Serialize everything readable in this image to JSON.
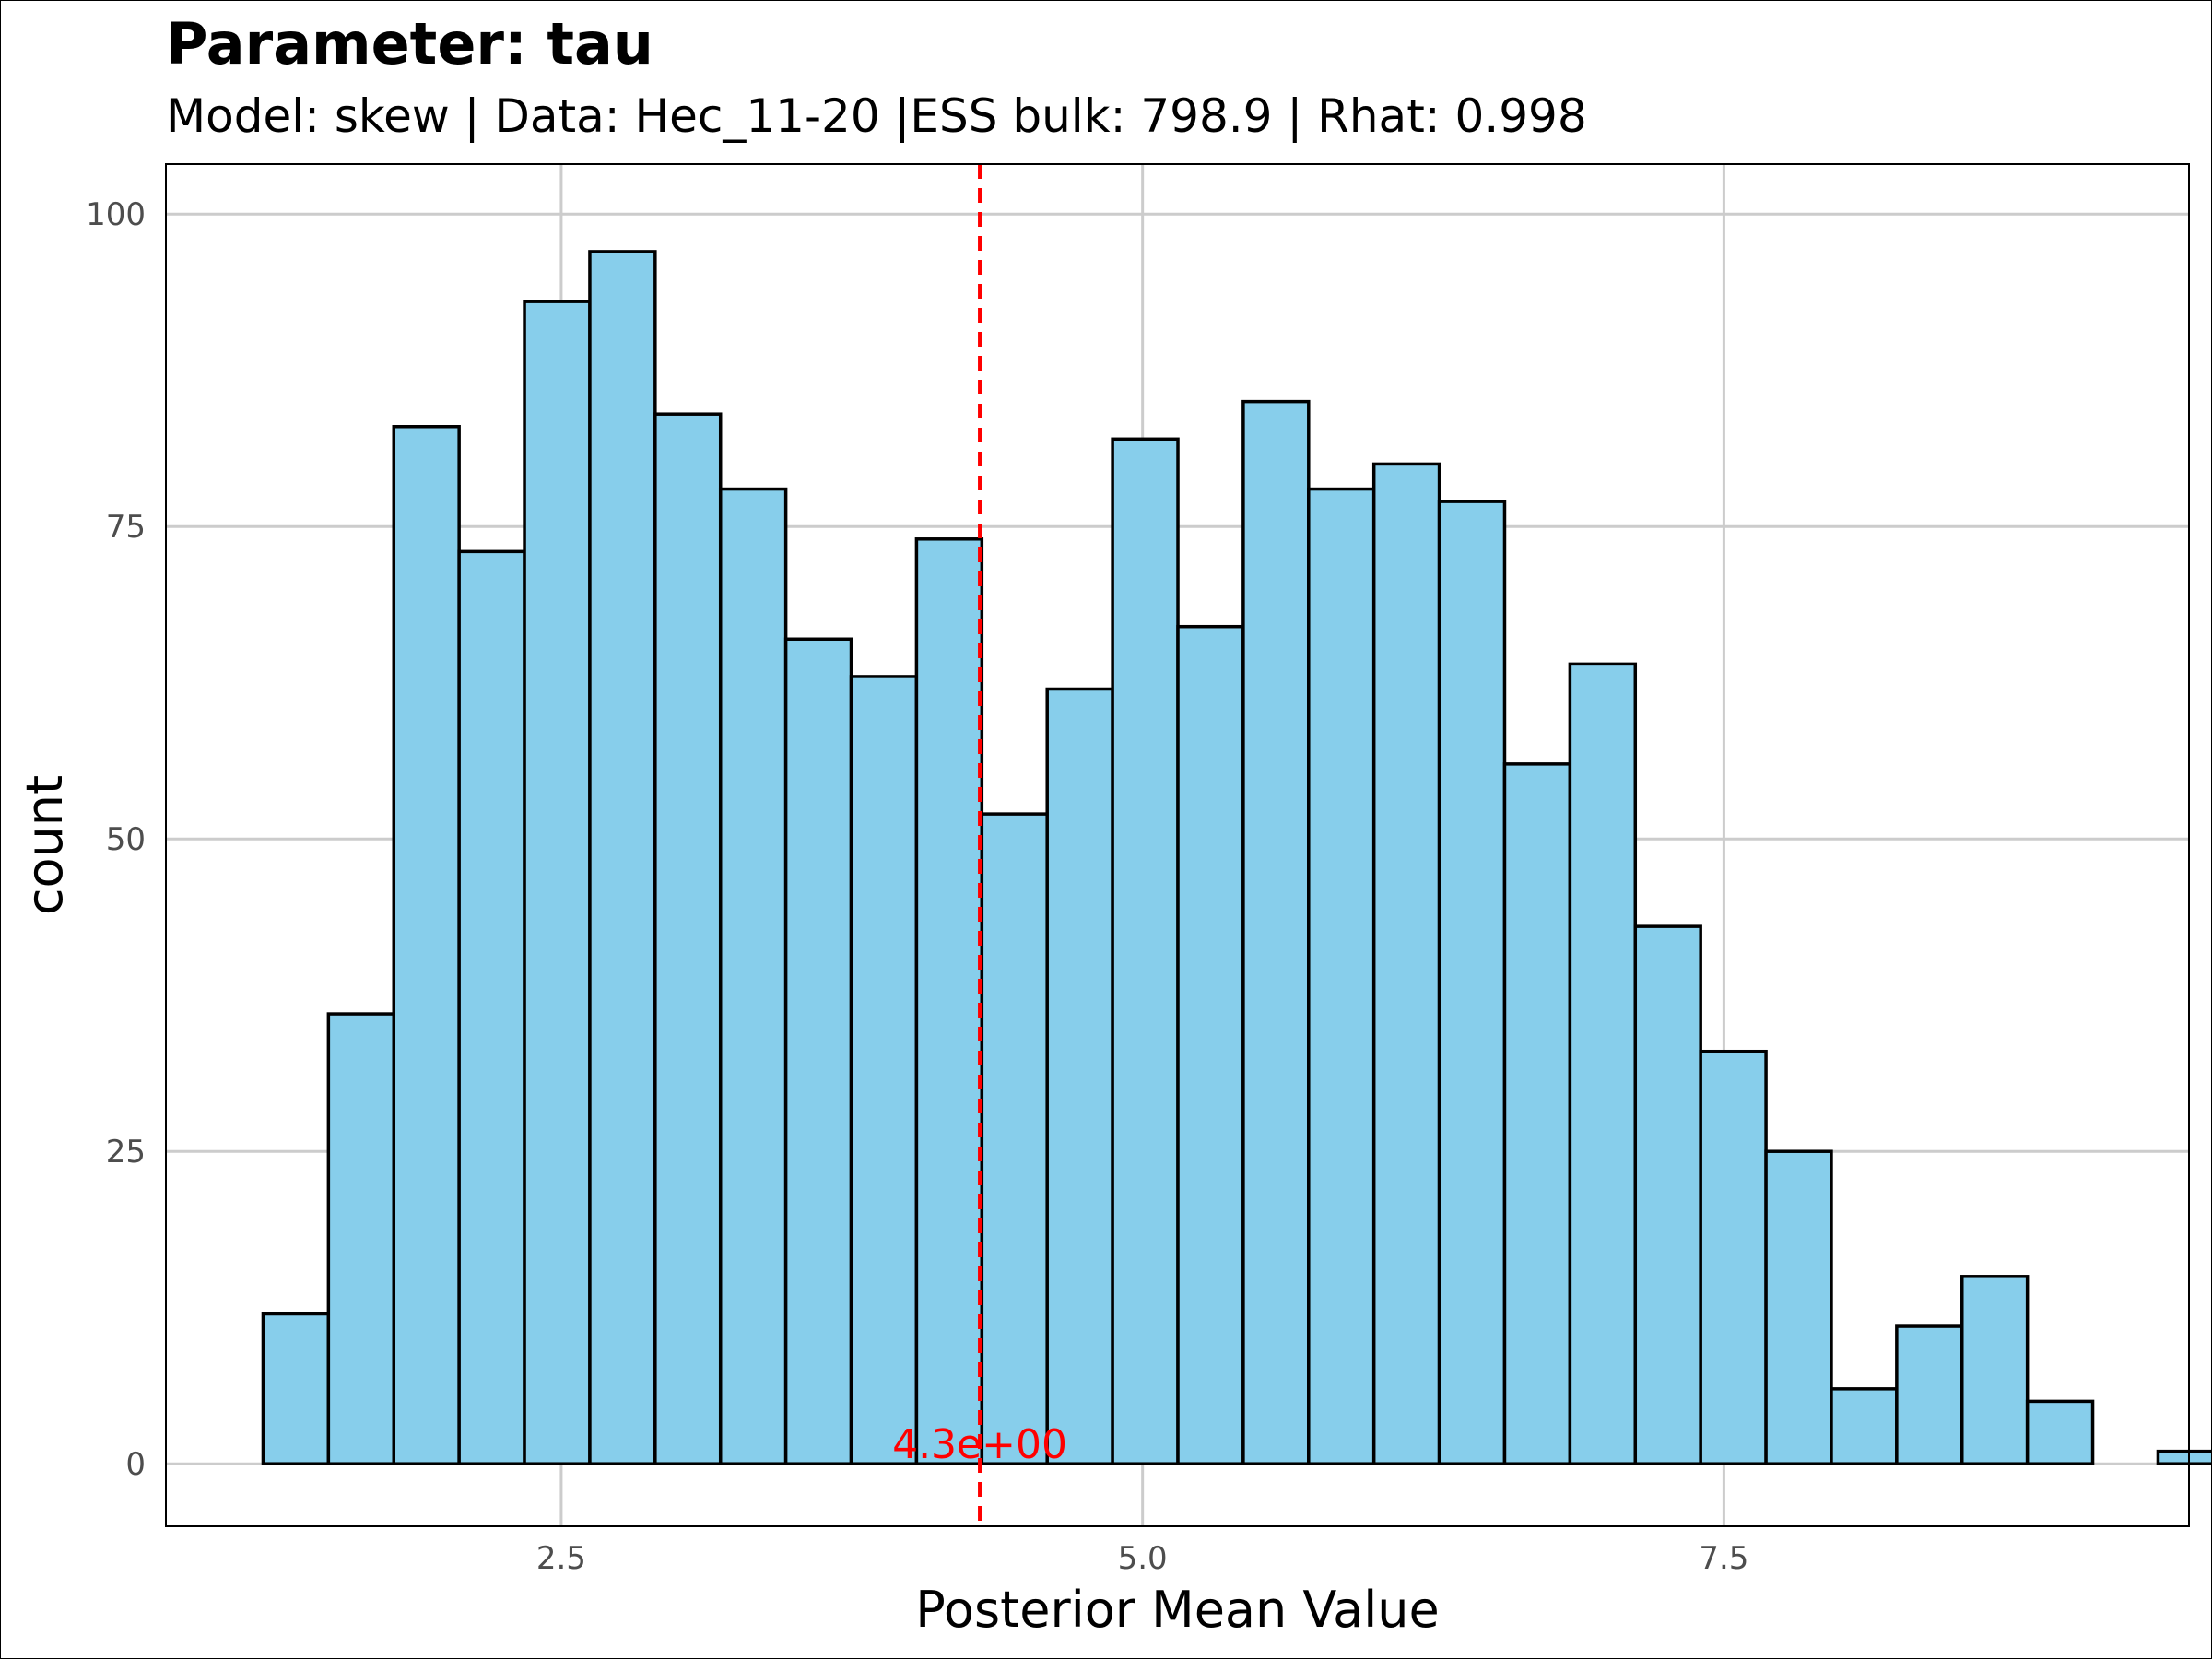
{
  "title": "Parameter: tau",
  "subtitle": "Model: skew | Data: Hec_11-20 |ESS bulk: 798.9 | Rhat: 0.998",
  "colors": {
    "bar_fill": "#87CEEB",
    "bar_stroke": "#000000",
    "mean_line": "#FF0000",
    "grid": "#CCCCCC"
  },
  "chart_data": {
    "type": "bar",
    "subtype": "histogram",
    "xlabel": "Posterior Mean Value",
    "ylabel": "count",
    "xlim": [
      0.8,
      9.5
    ],
    "ylim": [
      -5,
      104
    ],
    "x_ticks": [
      2.5,
      5.0,
      7.5
    ],
    "x_tick_labels": [
      "2.5",
      "5.0",
      "7.5"
    ],
    "y_ticks": [
      0,
      25,
      50,
      75,
      100
    ],
    "y_tick_labels": [
      "0",
      "25",
      "50",
      "75",
      "100"
    ],
    "grid": true,
    "bin_width": 0.281,
    "bins": [
      {
        "x0": 1.218,
        "x1": 1.499,
        "count": 12
      },
      {
        "x0": 1.499,
        "x1": 1.78,
        "count": 36
      },
      {
        "x0": 1.78,
        "x1": 2.061,
        "count": 83
      },
      {
        "x0": 2.061,
        "x1": 2.342,
        "count": 73
      },
      {
        "x0": 2.342,
        "x1": 2.623,
        "count": 93
      },
      {
        "x0": 2.623,
        "x1": 2.904,
        "count": 97
      },
      {
        "x0": 2.904,
        "x1": 3.185,
        "count": 84
      },
      {
        "x0": 3.185,
        "x1": 3.466,
        "count": 78
      },
      {
        "x0": 3.466,
        "x1": 3.747,
        "count": 66
      },
      {
        "x0": 3.747,
        "x1": 4.028,
        "count": 63
      },
      {
        "x0": 4.028,
        "x1": 4.309,
        "count": 74
      },
      {
        "x0": 4.309,
        "x1": 4.59,
        "count": 52
      },
      {
        "x0": 4.59,
        "x1": 4.871,
        "count": 62
      },
      {
        "x0": 4.871,
        "x1": 5.152,
        "count": 82
      },
      {
        "x0": 5.152,
        "x1": 5.433,
        "count": 67
      },
      {
        "x0": 5.433,
        "x1": 5.714,
        "count": 85
      },
      {
        "x0": 5.714,
        "x1": 5.995,
        "count": 78
      },
      {
        "x0": 5.995,
        "x1": 6.276,
        "count": 80
      },
      {
        "x0": 6.276,
        "x1": 6.557,
        "count": 77
      },
      {
        "x0": 6.557,
        "x1": 6.838,
        "count": 56
      },
      {
        "x0": 6.838,
        "x1": 7.119,
        "count": 64
      },
      {
        "x0": 7.119,
        "x1": 7.4,
        "count": 43
      },
      {
        "x0": 7.4,
        "x1": 7.681,
        "count": 33
      },
      {
        "x0": 7.681,
        "x1": 7.962,
        "count": 25
      },
      {
        "x0": 7.962,
        "x1": 8.243,
        "count": 6
      },
      {
        "x0": 8.243,
        "x1": 8.524,
        "count": 11
      },
      {
        "x0": 8.524,
        "x1": 8.805,
        "count": 15
      },
      {
        "x0": 8.805,
        "x1": 9.086,
        "count": 5
      },
      {
        "x0": 9.086,
        "x1": 9.367,
        "count": 0
      },
      {
        "x0": 9.367,
        "x1": 9.648,
        "count": 1
      }
    ],
    "mean_line": {
      "x": 4.3,
      "label": "4.3e+00",
      "style": "dashed"
    }
  }
}
